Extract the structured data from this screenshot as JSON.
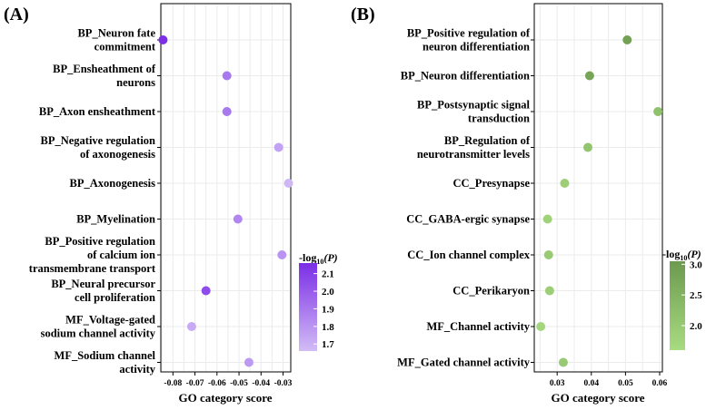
{
  "chart_data": [
    {
      "type": "scatter",
      "panel": "(A)",
      "xlabel": "GO category score",
      "x_ticks": [
        "-0.08",
        "-0.07",
        "-0.06",
        "-0.05",
        "-0.04",
        "-0.03"
      ],
      "xlim": [
        -0.0855,
        -0.0265
      ],
      "categories": [
        [
          "BP_Neuron fate",
          "commitment"
        ],
        [
          "BP_Ensheathment of",
          "neurons"
        ],
        [
          "BP_Axon ensheathment"
        ],
        [
          "BP_Negative regulation",
          "of axonogenesis"
        ],
        [
          "BP_Axonogenesis"
        ],
        [
          "BP_Myelination"
        ],
        [
          "BP_Positive regulation",
          "of calcium ion",
          "transmembrane transport"
        ],
        [
          "BP_Neural precursor",
          "cell proliferation"
        ],
        [
          "MF_Voltage-gated",
          "sodium channel activity"
        ],
        [
          "MF_Sodium channel",
          "activity"
        ]
      ],
      "x": [
        -0.0845,
        -0.0555,
        -0.0555,
        -0.032,
        -0.0275,
        -0.0505,
        -0.0305,
        -0.065,
        -0.0715,
        -0.0455
      ],
      "color_value": [
        2.15,
        1.9,
        1.9,
        1.75,
        1.68,
        1.85,
        1.8,
        2.05,
        1.72,
        1.78
      ],
      "legend": {
        "title_main": "-log",
        "title_sub": "10",
        "title_var": "(P)",
        "ticks": [
          "2.1",
          "2.0",
          "1.9",
          "1.8",
          "1.7"
        ],
        "tick_values": [
          2.1,
          2.0,
          1.9,
          1.8,
          1.7
        ],
        "range": [
          1.66,
          2.16
        ],
        "color_low": "#d2bcf6",
        "color_high": "#7b2ee6"
      },
      "grid": true
    },
    {
      "type": "scatter",
      "panel": "(B)",
      "xlabel": "GO category score",
      "x_ticks": [
        "0.03",
        "0.04",
        "0.05",
        "0.06"
      ],
      "xlim": [
        0.0233,
        0.0608
      ],
      "categories": [
        [
          "BP_Positive regulation of",
          "neuron differentiation"
        ],
        [
          "BP_Neuron differentiation"
        ],
        [
          "BP_Postsynaptic signal",
          "transduction"
        ],
        [
          "BP_Regulation of",
          "neurotransmitter levels"
        ],
        [
          "CC_Presynapse"
        ],
        [
          "CC_GABA-ergic synapse"
        ],
        [
          "CC_Ion channel complex"
        ],
        [
          "CC_Perikaryon"
        ],
        [
          "MF_Channel activity"
        ],
        [
          "MF_Gated channel activity"
        ]
      ],
      "x": [
        0.0505,
        0.0395,
        0.0595,
        0.039,
        0.0322,
        0.0272,
        0.0275,
        0.0278,
        0.0252,
        0.0318
      ],
      "color_value": [
        2.9,
        2.8,
        2.2,
        2.1,
        1.9,
        1.8,
        2.0,
        1.9,
        1.7,
        2.0
      ],
      "legend": {
        "title_main": "-log",
        "title_sub": "10",
        "title_var": "(P)",
        "ticks": [
          "3.0",
          "2.5",
          "2.0"
        ],
        "tick_values": [
          3.0,
          2.5,
          2.0
        ],
        "range": [
          1.6,
          3.05
        ],
        "color_low": "#a8dc80",
        "color_high": "#6c9a4f"
      },
      "grid": true
    }
  ]
}
